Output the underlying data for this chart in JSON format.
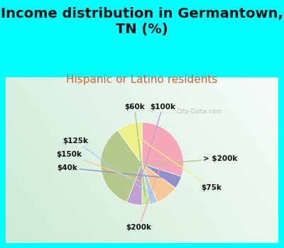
{
  "title": "Income distribution in Germantown,\nTN (%)",
  "subtitle": "Hispanic or Latino residents",
  "outer_bg": "#00FFFF",
  "inner_bg_top": "#c8ede8",
  "inner_bg_bottom": "#d8eed8",
  "labels": [
    "$200k",
    "$40k",
    "$150k",
    "$125k",
    "$60k",
    "$100k",
    "> $200k",
    "$75k"
  ],
  "values": [
    30,
    5,
    9,
    3,
    3,
    6,
    34,
    10
  ],
  "colors": [
    "#f4a8b8",
    "#9090cc",
    "#f5c99a",
    "#aaccee",
    "#c8e89a",
    "#c0a0d0",
    "#b5c98a",
    "#eef08a"
  ],
  "watermark": "City-Data.com",
  "title_fontsize": 14,
  "subtitle_fontsize": 11,
  "subtitle_color": "#cc6633",
  "startangle": 90
}
